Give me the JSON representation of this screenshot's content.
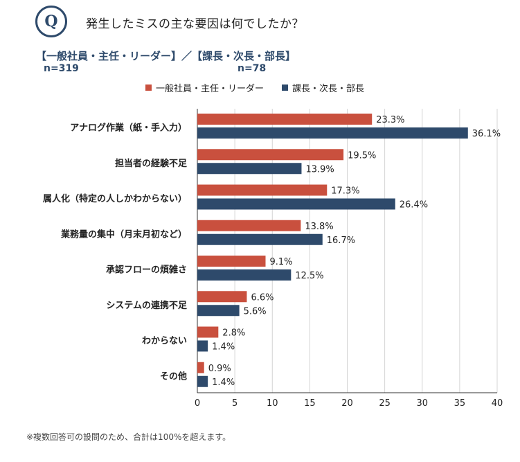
{
  "badge": "Q",
  "question": "発生したミスの主な要因は何でしたか？",
  "groups": {
    "line": "【一般社員・主任・リーダー】／【課長・次長・部長】",
    "n_left": "n=319",
    "n_right": "n=78"
  },
  "footnote": "※複数回答可の設問のため、合計は100%を超えます。",
  "chart_data": {
    "type": "bar",
    "orientation": "horizontal",
    "categories": [
      "アナログ作業（紙・手入力）",
      "担当者の経験不足",
      "属人化（特定の人しかわからない）",
      "業務量の集中（月末月初など）",
      "承認フローの煩雑さ",
      "システムの連携不足",
      "わからない",
      "その他"
    ],
    "series": [
      {
        "name": "一般社員・主任・リーダー",
        "color": "#c9503e",
        "values": [
          23.3,
          19.5,
          17.3,
          13.8,
          9.1,
          6.6,
          2.8,
          0.9
        ]
      },
      {
        "name": "課長・次長・部長",
        "color": "#2e4a6b",
        "values": [
          36.1,
          13.9,
          26.4,
          16.7,
          12.5,
          5.6,
          1.4,
          1.4
        ]
      }
    ],
    "xlim": [
      0,
      40
    ],
    "xticks": [
      0,
      5,
      10,
      15,
      20,
      25,
      30,
      35,
      40
    ],
    "value_suffix": "%",
    "grid": true,
    "legend_position": "top"
  }
}
